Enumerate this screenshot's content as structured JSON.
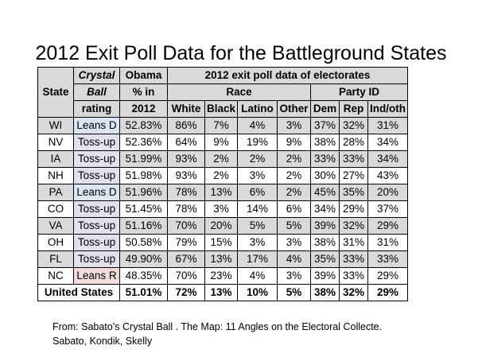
{
  "title": "2012 Exit Poll Data for the Battleground States",
  "headers": {
    "state": "State",
    "crystal_ball": [
      "Crystal",
      "Ball",
      "rating"
    ],
    "obama": [
      "Obama",
      "% in",
      "2012"
    ],
    "exit_poll": "2012 exit poll data of electorates",
    "race": "Race",
    "party_id": "Party ID",
    "columns": [
      "White",
      "Black",
      "Latino",
      "Other",
      "Dem",
      "Rep",
      "Ind/oth"
    ]
  },
  "rows": [
    {
      "state": "WI",
      "rating": "Leans D",
      "obama": "52.83%",
      "vals": [
        "86%",
        "7%",
        "4%",
        "3%",
        "37%",
        "32%",
        "31%"
      ]
    },
    {
      "state": "NV",
      "rating": "Toss-up",
      "obama": "52.36%",
      "vals": [
        "64%",
        "9%",
        "19%",
        "9%",
        "38%",
        "28%",
        "34%"
      ]
    },
    {
      "state": "IA",
      "rating": "Toss-up",
      "obama": "51.99%",
      "vals": [
        "93%",
        "2%",
        "2%",
        "2%",
        "33%",
        "33%",
        "34%"
      ]
    },
    {
      "state": "NH",
      "rating": "Toss-up",
      "obama": "51.98%",
      "vals": [
        "93%",
        "2%",
        "3%",
        "2%",
        "30%",
        "27%",
        "43%"
      ]
    },
    {
      "state": "PA",
      "rating": "Leans D",
      "obama": "51.96%",
      "vals": [
        "78%",
        "13%",
        "6%",
        "2%",
        "45%",
        "35%",
        "20%"
      ]
    },
    {
      "state": "CO",
      "rating": "Toss-up",
      "obama": "51.45%",
      "vals": [
        "78%",
        "3%",
        "14%",
        "6%",
        "34%",
        "29%",
        "37%"
      ]
    },
    {
      "state": "VA",
      "rating": "Toss-up",
      "obama": "51.16%",
      "vals": [
        "70%",
        "20%",
        "5%",
        "5%",
        "39%",
        "32%",
        "29%"
      ]
    },
    {
      "state": "OH",
      "rating": "Toss-up",
      "obama": "50.58%",
      "vals": [
        "79%",
        "15%",
        "3%",
        "3%",
        "38%",
        "31%",
        "31%"
      ]
    },
    {
      "state": "FL",
      "rating": "Toss-up",
      "obama": "49.90%",
      "vals": [
        "67%",
        "13%",
        "17%",
        "4%",
        "35%",
        "33%",
        "33%"
      ]
    },
    {
      "state": "NC",
      "rating": "Leans R",
      "obama": "48.35%",
      "vals": [
        "70%",
        "23%",
        "4%",
        "3%",
        "39%",
        "33%",
        "29%"
      ]
    }
  ],
  "total": {
    "label": "United States",
    "obama": "51.01%",
    "vals": [
      "72%",
      "13%",
      "10%",
      "5%",
      "38%",
      "32%",
      "29%"
    ]
  },
  "rating_colors": {
    "Leans D": "#dbe5f1",
    "Toss-up": "#e4dfec",
    "Leans R": "#f2dcdb"
  },
  "row_shade_color": "#d9d9d9",
  "source": [
    "From: Sabato’s Crystal Ball .  The Map: 11 Angles on the Electoral Collecte.",
    "Sabato, Kondik, Skelly"
  ]
}
